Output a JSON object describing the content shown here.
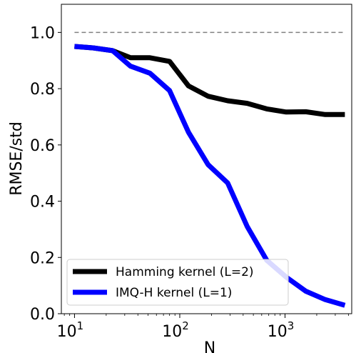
{
  "chart_data": {
    "type": "line",
    "xlabel": "N",
    "ylabel": "RMSE/std",
    "xscale": "log",
    "xlim": [
      7.5,
      4300
    ],
    "ylim": [
      0,
      1.1
    ],
    "xticks": [
      {
        "value": 10,
        "base": "10",
        "exp": "1"
      },
      {
        "value": 100,
        "base": "10",
        "exp": "2"
      },
      {
        "value": 1000,
        "base": "10",
        "exp": "3"
      }
    ],
    "yticks": [
      {
        "value": 0.0,
        "label": "0.0"
      },
      {
        "value": 0.2,
        "label": "0.2"
      },
      {
        "value": 0.4,
        "label": "0.4"
      },
      {
        "value": 0.6,
        "label": "0.6"
      },
      {
        "value": 0.8,
        "label": "0.8"
      },
      {
        "value": 1.0,
        "label": "1.0"
      }
    ],
    "reference_line": {
      "y": 1.0,
      "style": "dashed",
      "color": "#808080"
    },
    "legend_position": "lower-left",
    "series": [
      {
        "name": "Hamming kernel (L=2)",
        "color": "#000000",
        "x": [
          10,
          15,
          23,
          34,
          52,
          80,
          121,
          186,
          285,
          437,
          670,
          1026,
          1573,
          2410,
          3700
        ],
        "y": [
          0.95,
          0.945,
          0.935,
          0.91,
          0.91,
          0.897,
          0.81,
          0.773,
          0.757,
          0.748,
          0.728,
          0.717,
          0.718,
          0.708,
          0.708
        ]
      },
      {
        "name": "IMQ-H kernel (L=1)",
        "color": "#0000ff",
        "x": [
          10,
          15,
          23,
          34,
          52,
          80,
          121,
          186,
          285,
          437,
          670,
          1026,
          1573,
          2410,
          3700
        ],
        "y": [
          0.95,
          0.945,
          0.935,
          0.88,
          0.855,
          0.793,
          0.645,
          0.53,
          0.465,
          0.31,
          0.19,
          0.13,
          0.08,
          0.05,
          0.03
        ]
      }
    ]
  }
}
